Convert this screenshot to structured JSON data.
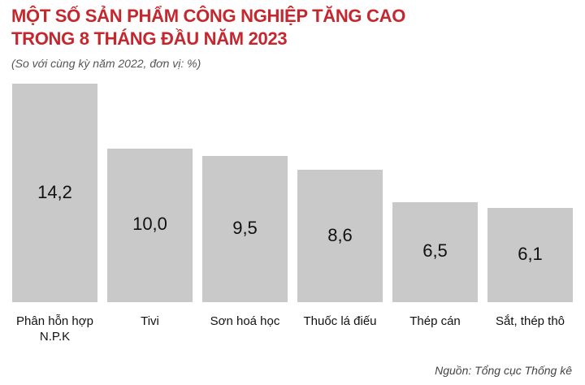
{
  "chart_data": {
    "type": "bar",
    "title": "MỘT SỐ SẢN PHẨM CÔNG NGHIỆP TĂNG CAO\nTRONG 8 THÁNG ĐẦU NĂM 2023",
    "subtitle": "(So với cùng kỳ năm 2022, đơn vị: %)",
    "categories": [
      "Phân hỗn hợp N.P.K",
      "Tivi",
      "Sơn hoá học",
      "Thuốc lá điếu",
      "Thép cán",
      "Sắt, thép thô"
    ],
    "values": [
      14.2,
      10.0,
      9.5,
      8.6,
      6.5,
      6.1
    ],
    "value_labels": [
      "14,2",
      "10,0",
      "9,5",
      "8,6",
      "6,5",
      "6,1"
    ],
    "color": "#c9c9c9",
    "source": "Nguồn: Tổng cục Thống kê"
  }
}
